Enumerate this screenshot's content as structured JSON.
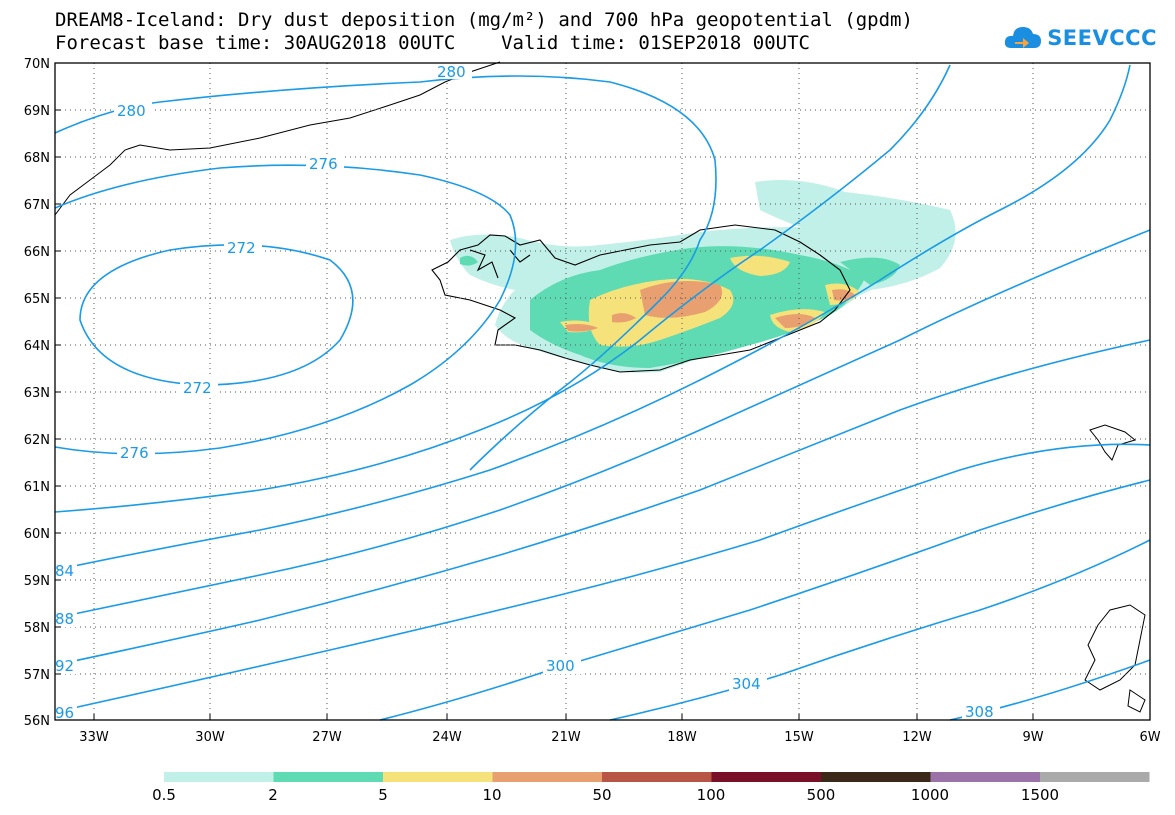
{
  "title": {
    "line1": "DREAM8-Iceland: Dry dust deposition (mg/m²) and 700 hPa geopotential (gpdm)",
    "line2": "Forecast base time: 30AUG2018 00UTC    Valid time: 01SEP2018 00UTC"
  },
  "logo": {
    "text": "SEEVCCC",
    "icon": "cloud-icon",
    "color": "#1a8ee0"
  },
  "axes": {
    "lat_labels": [
      "70N",
      "69N",
      "68N",
      "67N",
      "66N",
      "65N",
      "64N",
      "63N",
      "62N",
      "61N",
      "60N",
      "59N",
      "58N",
      "57N",
      "56N"
    ],
    "lon_labels": [
      "33W",
      "30W",
      "27W",
      "24W",
      "21W",
      "18W",
      "15W",
      "12W",
      "9W",
      "6W"
    ]
  },
  "contours": {
    "color": "#1a9be6",
    "labels": [
      "280",
      "280",
      "276",
      "272",
      "272",
      "276",
      "84",
      "88",
      "92",
      "96",
      "300",
      "304",
      "308"
    ]
  },
  "legend": {
    "ticks": [
      "0.5",
      "2",
      "5",
      "10",
      "50",
      "100",
      "500",
      "1000",
      "1500"
    ],
    "colors": [
      "#c0f0e8",
      "#5edbb3",
      "#f5e27a",
      "#e8a070",
      "#b85545",
      "#7a0f28",
      "#3a2818",
      "#9b72a8",
      "#aaaaaa"
    ]
  }
}
